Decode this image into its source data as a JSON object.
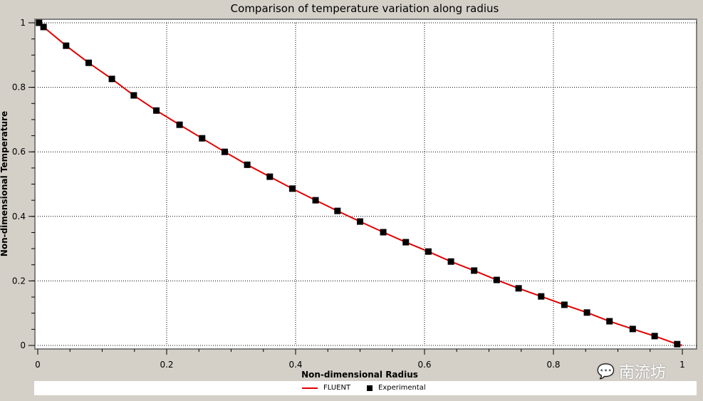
{
  "chart_data": {
    "type": "line",
    "title": "Comparison of temperature variation along radius",
    "xlabel": "Non-dimensional Radius",
    "ylabel": "Non-dimensional Temperature",
    "xlim": [
      0,
      1
    ],
    "ylim": [
      0,
      1
    ],
    "xticks": [
      "0",
      "0.2",
      "0.4",
      "0.6",
      "0.8",
      "1"
    ],
    "yticks": [
      "0",
      "0.2",
      "0.4",
      "0.6",
      "0.8",
      "1"
    ],
    "grid": true,
    "legend_position": "bottom",
    "series": [
      {
        "name": "FLUENT",
        "style": "line",
        "color": "#e00000",
        "x": [
          0,
          0.009,
          0.044,
          0.079,
          0.115,
          0.149,
          0.184,
          0.22,
          0.255,
          0.29,
          0.325,
          0.36,
          0.395,
          0.431,
          0.465,
          0.5,
          0.536,
          0.571,
          0.606,
          0.641,
          0.677,
          0.712,
          0.746,
          0.781,
          0.817,
          0.852,
          0.887,
          0.923,
          0.957,
          0.992,
          1.0
        ],
        "y": [
          1.0,
          0.987,
          0.929,
          0.876,
          0.826,
          0.775,
          0.728,
          0.684,
          0.642,
          0.6,
          0.56,
          0.523,
          0.486,
          0.45,
          0.417,
          0.384,
          0.351,
          0.32,
          0.291,
          0.26,
          0.232,
          0.203,
          0.177,
          0.152,
          0.126,
          0.102,
          0.075,
          0.051,
          0.029,
          0.004,
          0.0
        ]
      },
      {
        "name": "Experimental",
        "style": "marker",
        "color": "#000000",
        "x": [
          0.002,
          0.009,
          0.044,
          0.079,
          0.115,
          0.149,
          0.184,
          0.22,
          0.255,
          0.29,
          0.325,
          0.36,
          0.395,
          0.431,
          0.465,
          0.5,
          0.536,
          0.571,
          0.606,
          0.641,
          0.677,
          0.712,
          0.746,
          0.781,
          0.817,
          0.852,
          0.887,
          0.923,
          0.957,
          0.992
        ],
        "y": [
          1.0,
          0.987,
          0.929,
          0.876,
          0.826,
          0.775,
          0.728,
          0.684,
          0.642,
          0.6,
          0.56,
          0.523,
          0.486,
          0.45,
          0.417,
          0.384,
          0.351,
          0.32,
          0.291,
          0.26,
          0.232,
          0.203,
          0.177,
          0.152,
          0.126,
          0.102,
          0.075,
          0.051,
          0.029,
          0.004
        ]
      }
    ]
  },
  "watermark": "南流坊"
}
